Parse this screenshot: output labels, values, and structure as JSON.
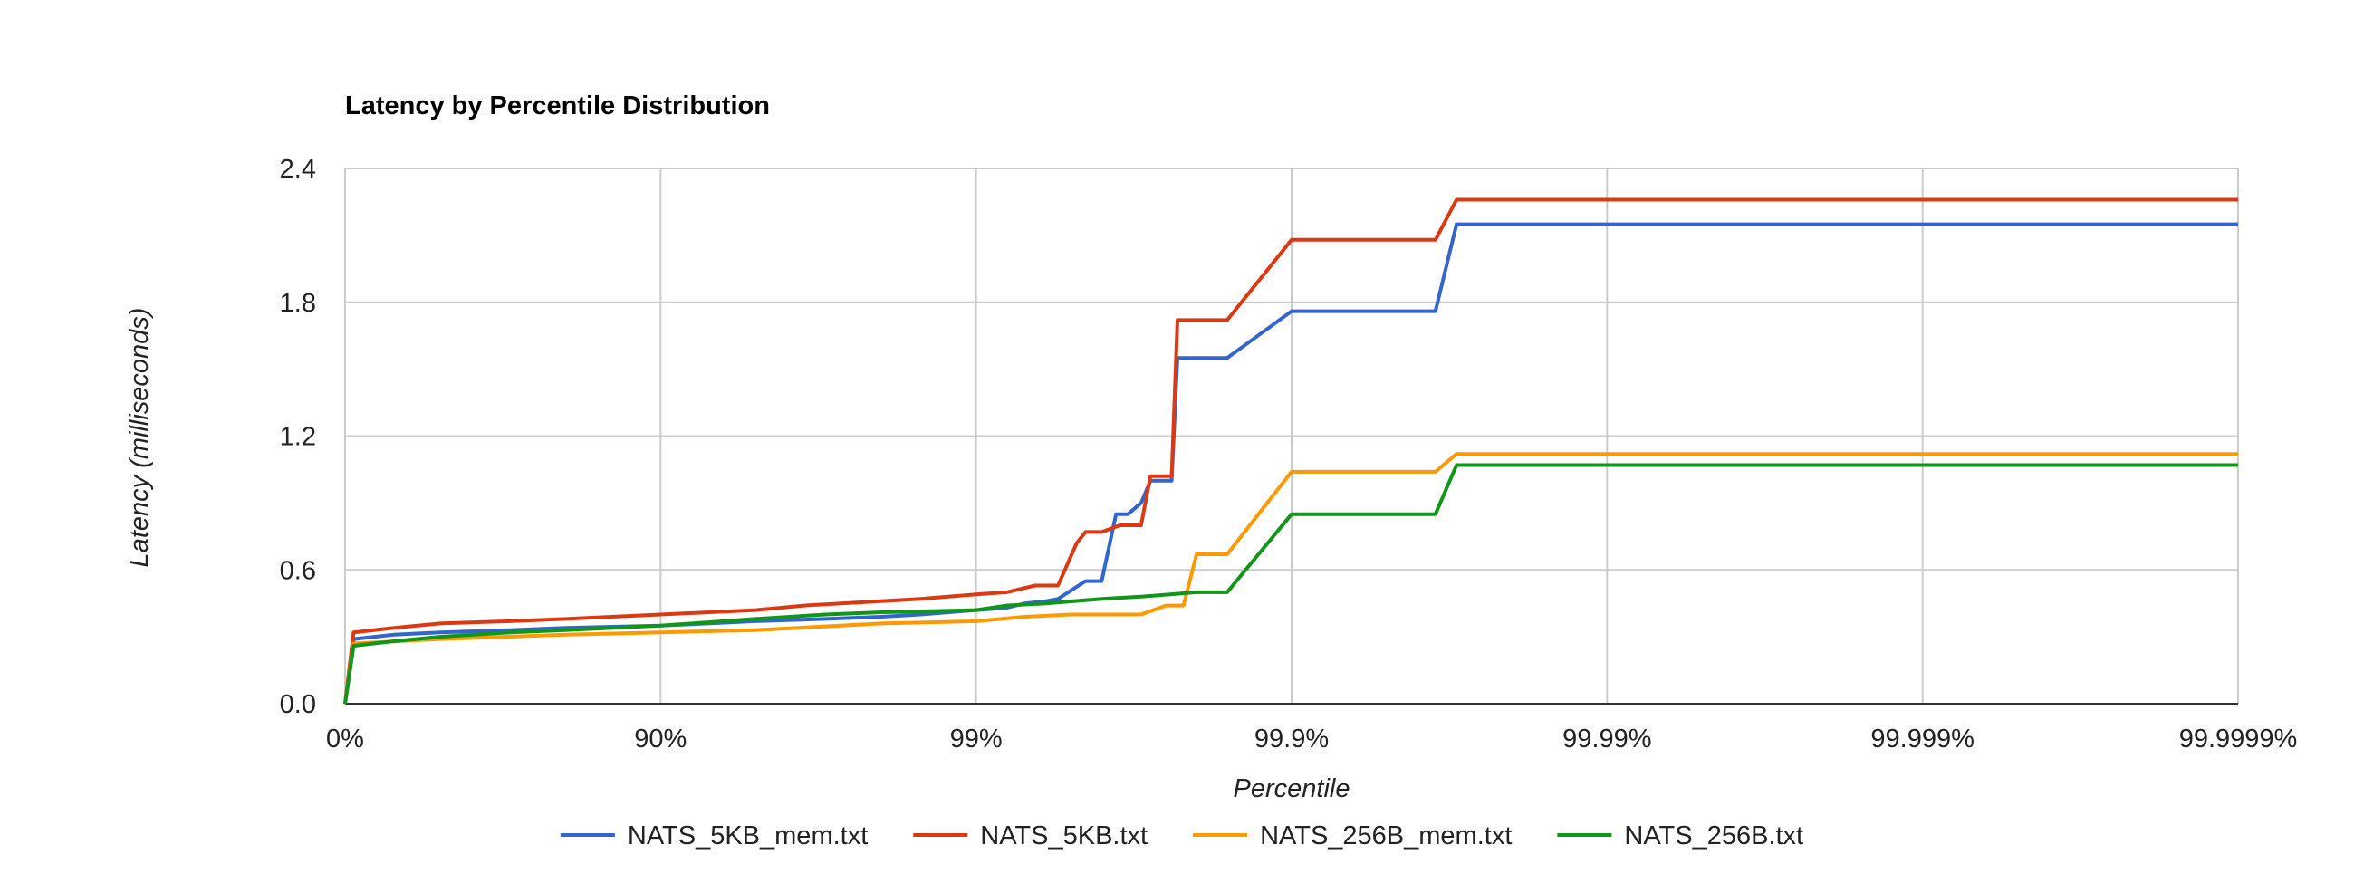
{
  "chart_data": {
    "type": "line",
    "title": "Latency by Percentile Distribution",
    "xlabel": "Percentile",
    "ylabel": "Latency (milliseconds)",
    "x_scale": "log-percentile",
    "x_ticks": [
      "0%",
      "90%",
      "99%",
      "99.9%",
      "99.99%",
      "99.999%",
      "99.9999%"
    ],
    "y_ticks": [
      "0.0",
      "0.6",
      "1.2",
      "1.8",
      "2.4"
    ],
    "ylim": [
      0,
      2.4
    ],
    "grid": true,
    "legend_position": "bottom",
    "series": [
      {
        "name": "NATS_5KB_mem.txt",
        "color": "#3366cc",
        "points": [
          [
            0,
            0.0
          ],
          [
            6,
            0.29
          ],
          [
            30,
            0.31
          ],
          [
            50,
            0.32
          ],
          [
            70,
            0.33
          ],
          [
            80,
            0.34
          ],
          [
            90,
            0.35
          ],
          [
            95,
            0.37
          ],
          [
            97,
            0.38
          ],
          [
            98,
            0.39
          ],
          [
            98.5,
            0.4
          ],
          [
            99,
            0.42
          ],
          [
            99.2,
            0.43
          ],
          [
            99.3,
            0.45
          ],
          [
            99.4,
            0.46
          ],
          [
            99.45,
            0.47
          ],
          [
            99.55,
            0.55
          ],
          [
            99.6,
            0.55
          ],
          [
            99.64,
            0.85
          ],
          [
            99.67,
            0.85
          ],
          [
            99.7,
            0.9
          ],
          [
            99.72,
            1.0
          ],
          [
            99.76,
            1.0
          ],
          [
            99.77,
            1.55
          ],
          [
            99.84,
            1.55
          ],
          [
            99.9,
            1.76
          ],
          [
            99.965,
            1.76
          ],
          [
            99.97,
            2.15
          ],
          [
            99.9999,
            2.15
          ]
        ]
      },
      {
        "name": "NATS_5KB.txt",
        "color": "#dc3912",
        "points": [
          [
            0,
            0.0
          ],
          [
            6,
            0.32
          ],
          [
            30,
            0.34
          ],
          [
            50,
            0.36
          ],
          [
            70,
            0.37
          ],
          [
            80,
            0.38
          ],
          [
            90,
            0.4
          ],
          [
            95,
            0.42
          ],
          [
            96.5,
            0.44
          ],
          [
            98,
            0.46
          ],
          [
            98.5,
            0.47
          ],
          [
            99,
            0.49
          ],
          [
            99.2,
            0.5
          ],
          [
            99.35,
            0.53
          ],
          [
            99.45,
            0.53
          ],
          [
            99.52,
            0.72
          ],
          [
            99.55,
            0.77
          ],
          [
            99.6,
            0.77
          ],
          [
            99.65,
            0.8
          ],
          [
            99.7,
            0.8
          ],
          [
            99.72,
            1.02
          ],
          [
            99.76,
            1.02
          ],
          [
            99.77,
            1.72
          ],
          [
            99.84,
            1.72
          ],
          [
            99.9,
            2.08
          ],
          [
            99.965,
            2.08
          ],
          [
            99.97,
            2.26
          ],
          [
            99.9999,
            2.26
          ]
        ]
      },
      {
        "name": "NATS_256B_mem.txt",
        "color": "#ff9900",
        "points": [
          [
            0,
            0.0
          ],
          [
            6,
            0.27
          ],
          [
            50,
            0.29
          ],
          [
            80,
            0.31
          ],
          [
            90,
            0.32
          ],
          [
            95,
            0.33
          ],
          [
            98,
            0.36
          ],
          [
            99,
            0.37
          ],
          [
            99.3,
            0.39
          ],
          [
            99.5,
            0.4
          ],
          [
            99.7,
            0.4
          ],
          [
            99.75,
            0.44
          ],
          [
            99.78,
            0.44
          ],
          [
            99.8,
            0.67
          ],
          [
            99.84,
            0.67
          ],
          [
            99.9,
            1.04
          ],
          [
            99.965,
            1.04
          ],
          [
            99.97,
            1.12
          ],
          [
            99.9999,
            1.12
          ]
        ]
      },
      {
        "name": "NATS_256B.txt",
        "color": "#109618",
        "points": [
          [
            0,
            0.0
          ],
          [
            6,
            0.26
          ],
          [
            30,
            0.28
          ],
          [
            50,
            0.3
          ],
          [
            70,
            0.32
          ],
          [
            80,
            0.33
          ],
          [
            90,
            0.35
          ],
          [
            95,
            0.38
          ],
          [
            97,
            0.4
          ],
          [
            98,
            0.41
          ],
          [
            99,
            0.42
          ],
          [
            99.2,
            0.44
          ],
          [
            99.4,
            0.45
          ],
          [
            99.6,
            0.47
          ],
          [
            99.7,
            0.48
          ],
          [
            99.8,
            0.5
          ],
          [
            99.84,
            0.5
          ],
          [
            99.9,
            0.85
          ],
          [
            99.965,
            0.85
          ],
          [
            99.97,
            1.07
          ],
          [
            99.9999,
            1.07
          ]
        ]
      }
    ]
  }
}
